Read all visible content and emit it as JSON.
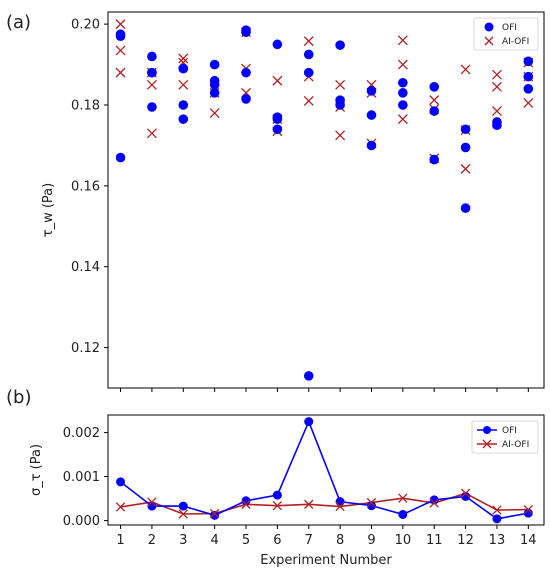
{
  "chart_data": [
    {
      "panel_label": "(a)",
      "type": "scatter",
      "ylabel": "τ_w (Pa)",
      "ylim": [
        0.11,
        0.203
      ],
      "xlim": [
        0.6,
        14.5
      ],
      "yticks": [
        0.12,
        0.14,
        0.16,
        0.18,
        0.2
      ],
      "ytick_labels": [
        "0.12",
        "0.14",
        "0.16",
        "0.18",
        "0.20"
      ],
      "xticks": [
        1,
        2,
        3,
        4,
        5,
        6,
        7,
        8,
        9,
        10,
        11,
        12,
        13,
        14
      ],
      "grid": false,
      "legend_position": "top-right",
      "series": [
        {
          "name": "OFI",
          "marker": "circle",
          "color": "#0000ff",
          "points": [
            [
              1,
              0.197
            ],
            [
              1,
              0.1975
            ],
            [
              1,
              0.167
            ],
            [
              2,
              0.192
            ],
            [
              2,
              0.188
            ],
            [
              2,
              0.1795
            ],
            [
              2,
              0.188
            ],
            [
              3,
              0.189
            ],
            [
              3,
              0.18
            ],
            [
              3,
              0.1765
            ],
            [
              3,
              0.189
            ],
            [
              4,
              0.19
            ],
            [
              4,
              0.186
            ],
            [
              4,
              0.185
            ],
            [
              4,
              0.183
            ],
            [
              5,
              0.1985
            ],
            [
              5,
              0.188
            ],
            [
              5,
              0.1815
            ],
            [
              5,
              0.198
            ],
            [
              6,
              0.195
            ],
            [
              6,
              0.177
            ],
            [
              6,
              0.174
            ],
            [
              6,
              0.1765
            ],
            [
              7,
              0.1925
            ],
            [
              7,
              0.188
            ],
            [
              7,
              0.113
            ],
            [
              8,
              0.1948
            ],
            [
              8,
              0.18
            ],
            [
              8,
              0.1812
            ],
            [
              9,
              0.1835
            ],
            [
              9,
              0.1775
            ],
            [
              9,
              0.17
            ],
            [
              10,
              0.1855
            ],
            [
              10,
              0.18
            ],
            [
              10,
              0.183
            ],
            [
              11,
              0.1845
            ],
            [
              11,
              0.1785
            ],
            [
              11,
              0.1665
            ],
            [
              12,
              0.1695
            ],
            [
              12,
              0.1545
            ],
            [
              12,
              0.174
            ],
            [
              13,
              0.1758
            ],
            [
              13,
              0.175
            ],
            [
              14,
              0.1908
            ],
            [
              14,
              0.184
            ],
            [
              14,
              0.187
            ]
          ]
        },
        {
          "name": "AI-OFI",
          "marker": "x",
          "color": "#b22222",
          "points": [
            [
              1,
              0.2
            ],
            [
              1,
              0.1935
            ],
            [
              1,
              0.188
            ],
            [
              2,
              0.188
            ],
            [
              2,
              0.185
            ],
            [
              2,
              0.173
            ],
            [
              3,
              0.1915
            ],
            [
              3,
              0.1905
            ],
            [
              3,
              0.185
            ],
            [
              4,
              0.184
            ],
            [
              4,
              0.183
            ],
            [
              4,
              0.178
            ],
            [
              5,
              0.198
            ],
            [
              5,
              0.189
            ],
            [
              5,
              0.183
            ],
            [
              6,
              0.186
            ],
            [
              6,
              0.1765
            ],
            [
              6,
              0.1735
            ],
            [
              7,
              0.1958
            ],
            [
              7,
              0.187
            ],
            [
              7,
              0.181
            ],
            [
              8,
              0.185
            ],
            [
              8,
              0.1795
            ],
            [
              8,
              0.1725
            ],
            [
              9,
              0.185
            ],
            [
              9,
              0.183
            ],
            [
              9,
              0.1705
            ],
            [
              10,
              0.196
            ],
            [
              10,
              0.19
            ],
            [
              10,
              0.1765
            ],
            [
              11,
              0.1812
            ],
            [
              11,
              0.179
            ],
            [
              11,
              0.1668
            ],
            [
              12,
              0.1888
            ],
            [
              12,
              0.1738
            ],
            [
              12,
              0.1642
            ],
            [
              13,
              0.1875
            ],
            [
              13,
              0.1845
            ],
            [
              13,
              0.1785
            ],
            [
              14,
              0.1905
            ],
            [
              14,
              0.187
            ],
            [
              14,
              0.1805
            ]
          ]
        }
      ]
    },
    {
      "panel_label": "(b)",
      "type": "line",
      "xlabel": "Experiment Number",
      "ylabel": "σ_τ (Pa)",
      "ylim": [
        -0.0001,
        0.0024
      ],
      "xlim": [
        0.6,
        14.5
      ],
      "yticks": [
        0,
        0.001,
        0.002
      ],
      "ytick_labels": [
        "0.000",
        "0.001",
        "0.002"
      ],
      "x": [
        1,
        2,
        3,
        4,
        5,
        6,
        7,
        8,
        9,
        10,
        11,
        12,
        13,
        14
      ],
      "xtick_labels": [
        "1",
        "2",
        "3",
        "4",
        "5",
        "6",
        "7",
        "8",
        "9",
        "10",
        "11",
        "12",
        "13",
        "14"
      ],
      "grid": false,
      "legend_position": "top-right",
      "series": [
        {
          "name": "OFI",
          "marker": "circle",
          "color": "#0000ff",
          "values": [
            0.00088,
            0.00033,
            0.00033,
            0.00012,
            0.00045,
            0.00058,
            0.00225,
            0.00043,
            0.00034,
            0.00014,
            0.00047,
            0.00055,
            4e-05,
            0.00017
          ]
        },
        {
          "name": "AI-OFI",
          "marker": "x",
          "color": "#b22222",
          "values": [
            0.00031,
            0.00042,
            0.00015,
            0.00016,
            0.00037,
            0.00034,
            0.00037,
            0.00032,
            0.00041,
            0.00051,
            0.0004,
            0.00062,
            0.00024,
            0.00025
          ]
        }
      ]
    }
  ]
}
